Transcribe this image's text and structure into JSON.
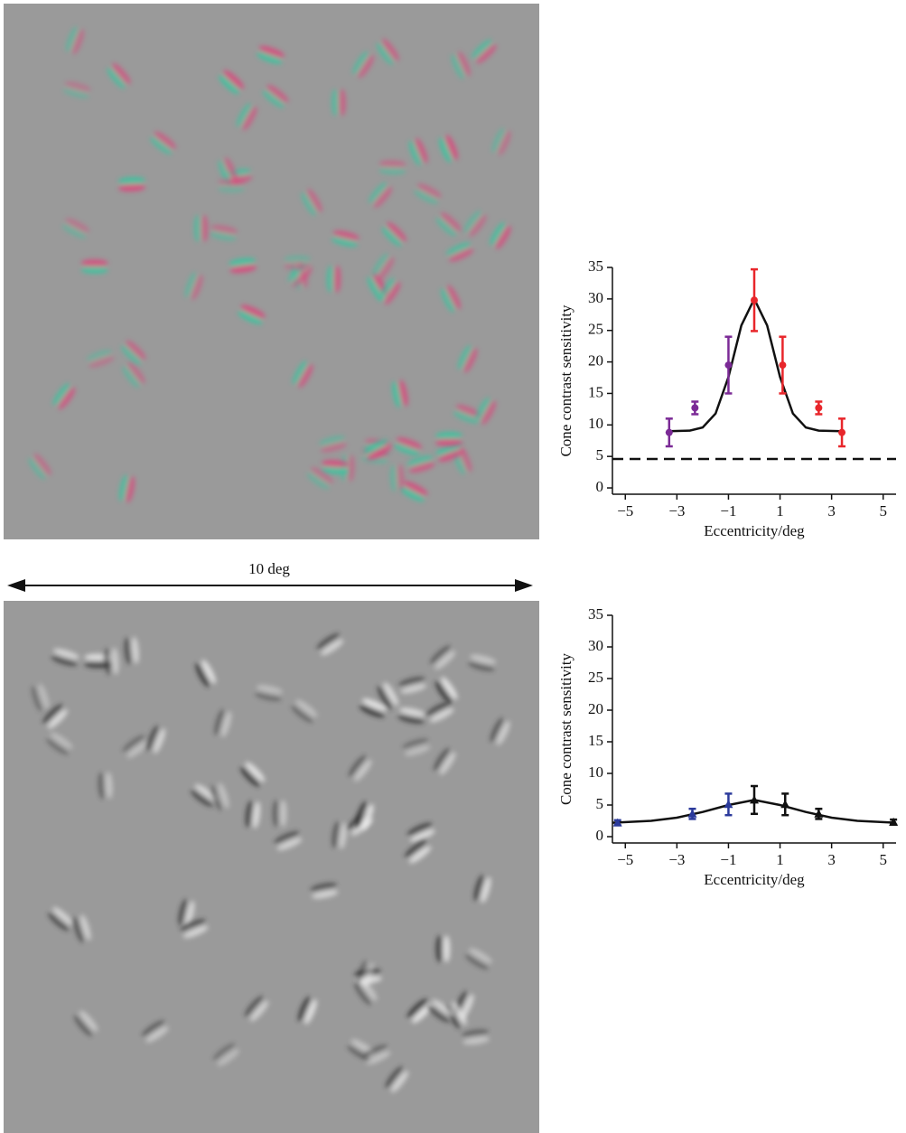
{
  "annotation": "10 deg",
  "chart_data": [
    {
      "type": "scatter",
      "xlabel": "Eccentricity/deg",
      "ylabel": "Cone contrast sensitivity",
      "xlim": [
        -5.5,
        5.5
      ],
      "ylim": [
        -1,
        35
      ],
      "xticks": [
        {
          "value": -5,
          "label": "−5"
        },
        {
          "value": -3,
          "label": "−3"
        },
        {
          "value": -1,
          "label": "−1"
        },
        1,
        3,
        5
      ],
      "yticks": [
        0,
        5,
        10,
        15,
        20,
        25,
        30,
        35
      ],
      "marker": "circle",
      "series": [
        {
          "color": "#7b2a96",
          "x": [
            -3.3,
            -2.3,
            -1
          ],
          "values": [
            8.8,
            12.7,
            19.5
          ],
          "errors": [
            2.2,
            1,
            4.5
          ]
        },
        {
          "color": "#e8262b",
          "x": [
            0,
            1.1,
            2.5,
            3.4
          ],
          "values": [
            29.8,
            19.5,
            12.7,
            8.8
          ],
          "errors": [
            4.9,
            4.5,
            1,
            2.2
          ]
        }
      ],
      "fit": {
        "color": "#111111",
        "x": [
          -3.3,
          -2.5,
          -2,
          -1.5,
          -1,
          -0.5,
          0,
          0.5,
          1,
          1.5,
          2,
          2.5,
          3.4
        ],
        "values": [
          9,
          9.1,
          9.6,
          11.8,
          17.6,
          25.8,
          30,
          25.8,
          17.6,
          11.8,
          9.6,
          9.1,
          9
        ]
      },
      "reference_line": 4.6
    },
    {
      "type": "scatter",
      "xlabel": "Eccentricity/deg",
      "ylabel": "Cone contrast sensitivity",
      "xlim": [
        -5.5,
        5.5
      ],
      "ylim": [
        -1,
        35
      ],
      "xticks": [
        {
          "value": -5,
          "label": "−5"
        },
        {
          "value": -3,
          "label": "−3"
        },
        {
          "value": -1,
          "label": "−1"
        },
        1,
        3,
        5
      ],
      "yticks": [
        0,
        5,
        10,
        15,
        20,
        25,
        30,
        35
      ],
      "marker": "triangle",
      "series": [
        {
          "color": "#2b3a9b",
          "x": [
            -5.3,
            -2.4,
            -1
          ],
          "values": [
            2.2,
            3.6,
            5.1
          ],
          "errors": [
            0.4,
            0.8,
            1.7
          ]
        },
        {
          "color": "#111111",
          "x": [
            0,
            1.2,
            2.5,
            5.4
          ],
          "values": [
            5.8,
            5.1,
            3.6,
            2.3
          ],
          "errors": [
            2.2,
            1.7,
            0.8,
            0.4
          ]
        }
      ],
      "fit": {
        "color": "#111111",
        "x": [
          -5.5,
          -4,
          -3,
          -2,
          -1,
          0,
          1,
          2,
          3,
          4,
          5.5
        ],
        "values": [
          2.2,
          2.5,
          3,
          3.9,
          5,
          5.8,
          5,
          3.9,
          3,
          2.5,
          2.2
        ]
      }
    }
  ]
}
